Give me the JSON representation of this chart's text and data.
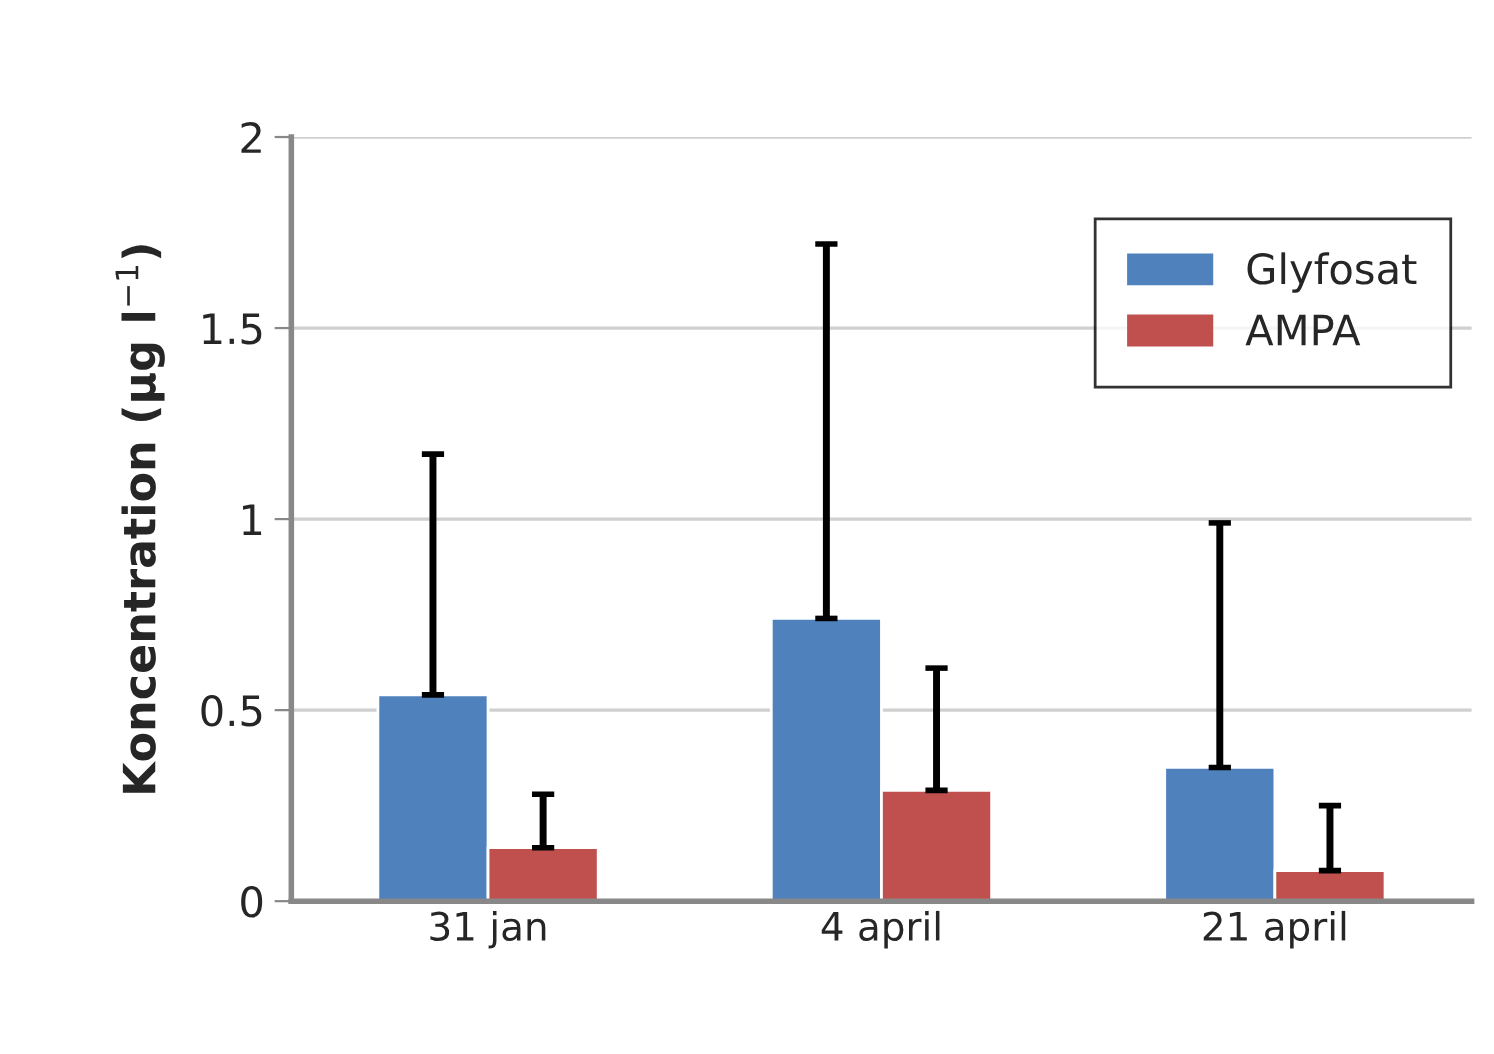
{
  "chart_data": {
    "type": "bar",
    "ylabel": "Koncentration (µg l$^{−1}$)",
    "categories": [
      "31 jan",
      "4 april",
      "21 april"
    ],
    "series": [
      {
        "name": "Glyfosat",
        "color": "#4f81bd",
        "values": [
          0.54,
          0.74,
          0.35
        ],
        "errors": [
          [
            0.54,
            1.17
          ],
          [
            0.74,
            1.72
          ],
          [
            0.35,
            0.99
          ]
        ]
      },
      {
        "name": "AMPA",
        "color": "#c0504d",
        "values": [
          0.14,
          0.29,
          0.08
        ],
        "errors": [
          [
            0.14,
            0.28
          ],
          [
            0.29,
            0.61
          ],
          [
            0.08,
            0.25
          ]
        ]
      }
    ],
    "ylim": [
      0,
      2
    ],
    "yticks": [
      0,
      {
        "value": 0.5,
        "label": "0.5"
      },
      1,
      {
        "value": 1.5,
        "label": "1.5"
      },
      2
    ],
    "grid": "y",
    "legend": "top right"
  }
}
